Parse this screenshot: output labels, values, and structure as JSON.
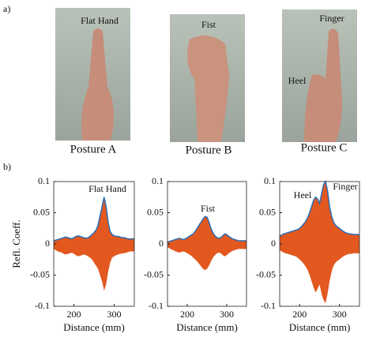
{
  "panel_a": {
    "label": "a)",
    "photos": [
      {
        "caption": "Posture A",
        "labels": [
          "Flat Hand"
        ]
      },
      {
        "caption": "Posture B",
        "labels": [
          "Fist"
        ]
      },
      {
        "caption": "Posture C",
        "labels": [
          "Finger",
          "Heel"
        ]
      }
    ]
  },
  "panel_b": {
    "label": "b)"
  },
  "chart_data": [
    {
      "type": "band",
      "ylabel": "Refl. Coeff.",
      "xlabel": "Distance (mm)",
      "annotations": [
        "Flat Hand"
      ],
      "xlim": [
        150,
        350
      ],
      "xticks": [
        200,
        300
      ],
      "ylim": [
        -0.1,
        0.1
      ],
      "yticks": [
        -0.1,
        -0.05,
        0,
        0.05,
        0.1
      ],
      "x": [
        150,
        155,
        160,
        165,
        170,
        175,
        180,
        185,
        190,
        195,
        200,
        205,
        210,
        215,
        220,
        225,
        230,
        235,
        240,
        245,
        250,
        255,
        260,
        265,
        270,
        275,
        280,
        285,
        290,
        295,
        300,
        305,
        310,
        315,
        320,
        325,
        330,
        335,
        340,
        345,
        350
      ],
      "series": [
        {
          "color": "#2a6db5",
          "values": [
            0.005,
            0.006,
            0.007,
            0.008,
            0.009,
            0.01,
            0.011,
            0.01,
            0.009,
            0.008,
            0.01,
            0.012,
            0.013,
            0.012,
            0.011,
            0.01,
            0.009,
            0.01,
            0.012,
            0.015,
            0.018,
            0.022,
            0.03,
            0.045,
            0.06,
            0.075,
            0.06,
            0.035,
            0.02,
            0.015,
            0.013,
            0.012,
            0.012,
            0.011,
            0.01,
            0.01,
            0.009,
            0.008,
            0.008,
            0.008,
            0.008
          ]
        },
        {
          "color": "#e2581f",
          "values": [
            -0.008,
            -0.01,
            -0.012,
            -0.013,
            -0.014,
            -0.016,
            -0.017,
            -0.016,
            -0.015,
            -0.014,
            -0.016,
            -0.018,
            -0.02,
            -0.019,
            -0.018,
            -0.017,
            -0.018,
            -0.02,
            -0.022,
            -0.025,
            -0.03,
            -0.035,
            -0.04,
            -0.05,
            -0.06,
            -0.075,
            -0.065,
            -0.045,
            -0.03,
            -0.022,
            -0.02,
            -0.018,
            -0.017,
            -0.016,
            -0.015,
            -0.015,
            -0.014,
            -0.013,
            -0.012,
            -0.012,
            -0.012
          ]
        }
      ]
    },
    {
      "type": "band",
      "xlabel": "Distance (mm)",
      "annotations": [
        "Fist"
      ],
      "xlim": [
        150,
        350
      ],
      "xticks": [
        200,
        300
      ],
      "ylim": [
        -0.1,
        0.1
      ],
      "yticks": [
        -0.1,
        -0.05,
        0,
        0.05,
        0.1
      ],
      "x": [
        150,
        155,
        160,
        165,
        170,
        175,
        180,
        185,
        190,
        195,
        200,
        205,
        210,
        215,
        220,
        225,
        230,
        235,
        240,
        245,
        250,
        255,
        260,
        265,
        270,
        275,
        280,
        285,
        290,
        295,
        300,
        305,
        310,
        315,
        320,
        325,
        330,
        335,
        340,
        345,
        350
      ],
      "series": [
        {
          "color": "#2a6db5",
          "values": [
            0.003,
            0.004,
            0.005,
            0.006,
            0.007,
            0.008,
            0.009,
            0.008,
            0.007,
            0.008,
            0.01,
            0.012,
            0.014,
            0.016,
            0.02,
            0.025,
            0.03,
            0.035,
            0.04,
            0.044,
            0.043,
            0.035,
            0.025,
            0.018,
            0.013,
            0.01,
            0.009,
            0.01,
            0.013,
            0.016,
            0.015,
            0.012,
            0.01,
            0.008,
            0.007,
            0.006,
            0.005,
            0.005,
            0.005,
            0.005,
            0.005
          ]
        },
        {
          "color": "#e2581f",
          "values": [
            -0.005,
            -0.007,
            -0.009,
            -0.01,
            -0.012,
            -0.013,
            -0.014,
            -0.013,
            -0.012,
            -0.013,
            -0.015,
            -0.017,
            -0.019,
            -0.022,
            -0.025,
            -0.028,
            -0.032,
            -0.036,
            -0.04,
            -0.042,
            -0.04,
            -0.035,
            -0.028,
            -0.022,
            -0.018,
            -0.015,
            -0.014,
            -0.015,
            -0.018,
            -0.02,
            -0.018,
            -0.015,
            -0.013,
            -0.011,
            -0.01,
            -0.009,
            -0.008,
            -0.008,
            -0.008,
            -0.008,
            -0.008
          ]
        }
      ]
    },
    {
      "type": "band",
      "xlabel": "Distance (mm)",
      "annotations": [
        "Heel",
        "Finger"
      ],
      "xlim": [
        150,
        350
      ],
      "xticks": [
        200,
        300
      ],
      "ylim": [
        -0.1,
        0.1
      ],
      "yticks": [
        -0.1,
        -0.05,
        0,
        0.05,
        0.1
      ],
      "x": [
        150,
        155,
        160,
        165,
        170,
        175,
        180,
        185,
        190,
        195,
        200,
        205,
        210,
        215,
        220,
        225,
        230,
        235,
        240,
        245,
        250,
        255,
        260,
        265,
        270,
        275,
        280,
        285,
        290,
        295,
        300,
        305,
        310,
        315,
        320,
        325,
        330,
        335,
        340,
        345,
        350
      ],
      "series": [
        {
          "color": "#2a6db5",
          "values": [
            0.013,
            0.014,
            0.016,
            0.017,
            0.018,
            0.019,
            0.02,
            0.021,
            0.022,
            0.023,
            0.025,
            0.028,
            0.032,
            0.036,
            0.042,
            0.05,
            0.06,
            0.07,
            0.075,
            0.072,
            0.065,
            0.08,
            0.095,
            0.1,
            0.085,
            0.06,
            0.045,
            0.035,
            0.03,
            0.027,
            0.025,
            0.022,
            0.02,
            0.018,
            0.017,
            0.016,
            0.016,
            0.015,
            0.015,
            0.015,
            0.015
          ]
        },
        {
          "color": "#e2581f",
          "values": [
            -0.01,
            -0.012,
            -0.014,
            -0.015,
            -0.016,
            -0.017,
            -0.018,
            -0.019,
            -0.02,
            -0.022,
            -0.025,
            -0.028,
            -0.032,
            -0.036,
            -0.042,
            -0.05,
            -0.06,
            -0.07,
            -0.078,
            -0.072,
            -0.065,
            -0.08,
            -0.09,
            -0.095,
            -0.08,
            -0.06,
            -0.045,
            -0.035,
            -0.03,
            -0.027,
            -0.025,
            -0.022,
            -0.02,
            -0.018,
            -0.017,
            -0.016,
            -0.016,
            -0.015,
            -0.015,
            -0.015,
            -0.015
          ]
        }
      ]
    }
  ]
}
